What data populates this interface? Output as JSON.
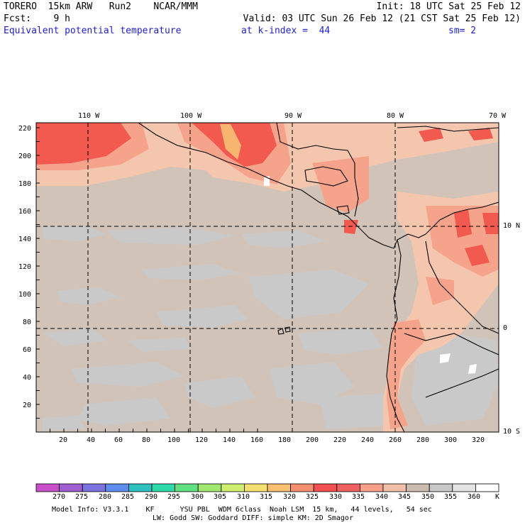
{
  "header": {
    "line1_left": "TORERO  15km ARW   Run2    NCAR/MMM",
    "line1_right": "Init: 18 UTC Sat 25 Feb 12",
    "line2_left": "Fcst:    9 h",
    "line2_right": "Valid: 03 UTC Sun 26 Feb 12 (21 CST Sat 25 Feb 12)",
    "line3_field": "Equivalent potential temperature",
    "line3_level": "at k-index =  44",
    "line3_smooth": "sm= 2"
  },
  "axes": {
    "lon_labels": [
      "110 W",
      "100 W",
      "90 W",
      "80 W",
      "70 W"
    ],
    "lat_labels": [
      "10 N",
      "0",
      "10 S"
    ],
    "y_ticks": [
      "220",
      "200",
      "180",
      "160",
      "140",
      "120",
      "100",
      "80",
      "60",
      "40",
      "20"
    ],
    "x_ticks": [
      "20",
      "40",
      "60",
      "80",
      "100",
      "120",
      "140",
      "160",
      "180",
      "200",
      "220",
      "240",
      "260",
      "280",
      "300",
      "320"
    ]
  },
  "colorbar": {
    "labels": [
      "270",
      "275",
      "280",
      "285",
      "290",
      "295",
      "300",
      "305",
      "310",
      "315",
      "320",
      "325",
      "330",
      "335",
      "340",
      "345",
      "350",
      "355",
      "360"
    ],
    "unit": "K",
    "colors": [
      "#c84fc8",
      "#a05fd0",
      "#7c72e0",
      "#5f8cef",
      "#2fc0c0",
      "#2fd8a8",
      "#60e080",
      "#a0e870",
      "#d0ee70",
      "#f4e070",
      "#f8c070",
      "#f49070",
      "#f25050",
      "#f06060",
      "#f8a088",
      "#f0c0a8",
      "#ccbcb0",
      "#c8c8c8",
      "#e4e4e4",
      "#ffffff"
    ]
  },
  "footer": {
    "line1": "Model Info: V3.3.1    KF      YSU PBL  WDM 6class  Noah LSM  15 km,   44 levels,   54 sec",
    "line2": "LW: Godd SW: Goddard DIFF: simple KM: 2D Smagor"
  },
  "map_colors": {
    "background": "#d2c3b9",
    "gray": "#c8c8c8",
    "peach": "#f4c6ad",
    "salmon": "#f6a38c",
    "red": "#f25a50",
    "orange": "#f7b670"
  }
}
